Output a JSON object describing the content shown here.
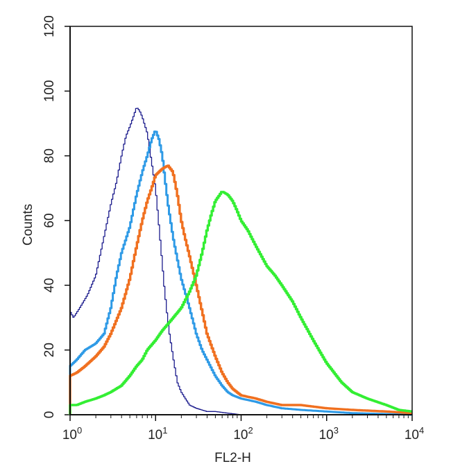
{
  "chart_data": {
    "type": "line",
    "title": "",
    "xlabel": "FL2-H",
    "ylabel": "Counts",
    "x_scale": "log",
    "xlim": [
      1,
      10000
    ],
    "ylim": [
      0,
      120
    ],
    "x_ticks": [
      {
        "value": 1,
        "base": "10",
        "exp": "0"
      },
      {
        "value": 10,
        "base": "10",
        "exp": "1"
      },
      {
        "value": 100,
        "base": "10",
        "exp": "2"
      },
      {
        "value": 1000,
        "base": "10",
        "exp": "3"
      },
      {
        "value": 10000,
        "base": "10",
        "exp": "4"
      }
    ],
    "y_ticks": [
      0,
      20,
      40,
      60,
      80,
      100,
      120
    ],
    "grid": false,
    "legend": "none",
    "series": [
      {
        "color": "#1a1a8c",
        "stroke": "thin",
        "x": [
          1,
          1.1,
          1.3,
          1.6,
          2,
          2.5,
          3,
          3.5,
          4,
          4.5,
          5,
          5.5,
          6,
          6.5,
          7,
          8,
          9,
          10,
          11,
          12.6,
          14,
          16,
          18,
          20,
          25,
          30,
          40,
          50,
          70,
          100,
          200,
          10000
        ],
        "y": [
          32,
          30,
          33,
          37,
          43,
          55,
          65,
          72,
          80,
          86,
          89,
          92,
          95,
          94,
          92,
          87,
          78,
          70,
          58,
          40,
          28,
          18,
          10,
          7,
          3,
          2,
          1,
          1,
          0.5,
          0,
          0,
          0
        ]
      },
      {
        "color": "#2e9ae6",
        "stroke": "medium",
        "x": [
          1,
          1.2,
          1.5,
          2,
          2.5,
          3,
          3.5,
          4,
          5,
          6,
          7,
          8,
          9,
          10,
          11,
          12,
          13,
          14,
          16,
          18,
          20,
          25,
          30,
          35,
          40,
          50,
          60,
          70,
          80,
          100,
          150,
          200,
          300,
          500,
          1000,
          2000,
          10000
        ],
        "y": [
          15,
          17,
          20,
          22,
          25,
          33,
          43,
          50,
          58,
          68,
          75,
          80,
          85,
          88,
          85,
          80,
          72,
          65,
          55,
          48,
          42,
          33,
          25,
          20,
          17,
          12,
          9,
          7,
          6,
          5,
          4,
          3,
          2,
          1.5,
          1,
          0.5,
          0
        ]
      },
      {
        "color": "#f07020",
        "stroke": "thick",
        "x": [
          1,
          1.2,
          1.5,
          2,
          2.5,
          3,
          4,
          5,
          6,
          7,
          8,
          9,
          10,
          12,
          14,
          16,
          18,
          20,
          22,
          25,
          30,
          35,
          40,
          50,
          60,
          70,
          80,
          100,
          150,
          200,
          300,
          500,
          1000,
          2000,
          5000,
          10000
        ],
        "y": [
          12,
          13,
          15,
          18,
          21,
          25,
          33,
          42,
          52,
          60,
          66,
          70,
          74,
          76,
          77,
          75,
          68,
          60,
          55,
          49,
          40,
          32,
          25,
          18,
          13,
          10,
          8,
          6,
          5,
          4,
          3,
          3,
          2,
          1.5,
          1,
          0.5
        ]
      },
      {
        "color": "#33ee33",
        "stroke": "thick",
        "x": [
          1,
          1.2,
          1.5,
          2,
          2.5,
          3,
          4,
          5,
          6,
          7,
          8,
          10,
          12,
          15,
          20,
          25,
          30,
          35,
          40,
          45,
          50,
          60,
          70,
          80,
          90,
          100,
          120,
          150,
          200,
          250,
          300,
          400,
          500,
          700,
          1000,
          1500,
          2000,
          3000,
          5000,
          7000,
          10000
        ],
        "y": [
          3,
          3,
          4,
          5,
          6,
          7,
          9,
          12,
          15,
          17,
          20,
          23,
          26,
          29,
          33,
          38,
          43,
          50,
          57,
          62,
          66,
          69,
          68,
          66,
          63,
          60,
          57,
          52,
          46,
          43,
          40,
          35,
          30,
          23,
          16,
          10,
          7,
          5,
          3,
          1.5,
          1
        ]
      }
    ]
  }
}
